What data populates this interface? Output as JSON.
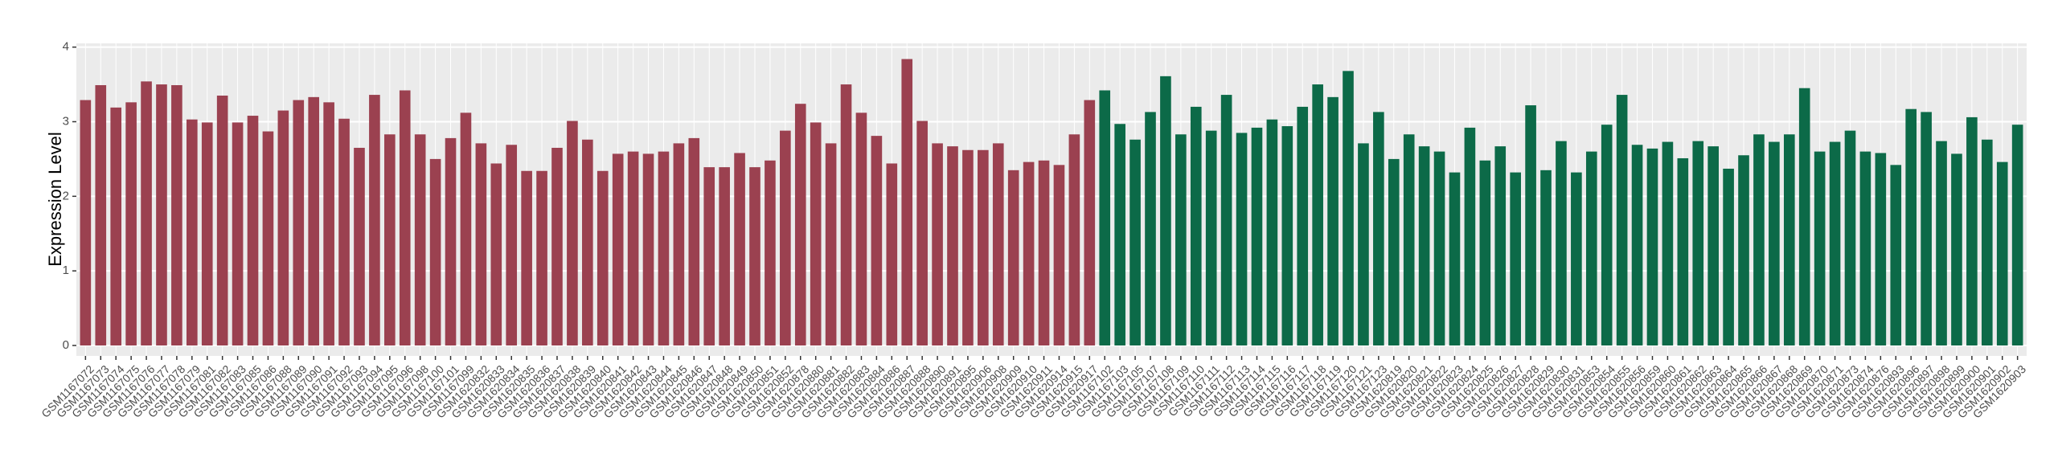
{
  "chart_data": {
    "type": "bar",
    "y_label": "Expression Level",
    "categories": [
      "GSM1167072",
      "GSM1167073",
      "GSM1167074",
      "GSM1167075",
      "GSM1167076",
      "GSM1167077",
      "GSM1167078",
      "GSM1167079",
      "GSM1167081",
      "GSM1167082",
      "GSM1167083",
      "GSM1167085",
      "GSM1167086",
      "GSM1167088",
      "GSM1167089",
      "GSM1167090",
      "GSM1167091",
      "GSM1167092",
      "GSM1167093",
      "GSM1167094",
      "GSM1167095",
      "GSM1167096",
      "GSM1167098",
      "GSM1167100",
      "GSM1167101",
      "GSM1167099",
      "GSM1620832",
      "GSM1620833",
      "GSM1620834",
      "GSM1620835",
      "GSM1620836",
      "GSM1620837",
      "GSM1620838",
      "GSM1620839",
      "GSM1620840",
      "GSM1620841",
      "GSM1620842",
      "GSM1620843",
      "GSM1620844",
      "GSM1620845",
      "GSM1620846",
      "GSM1620847",
      "GSM1620848",
      "GSM1620849",
      "GSM1620850",
      "GSM1620851",
      "GSM1620852",
      "GSM1620878",
      "GSM1620880",
      "GSM1620881",
      "GSM1620882",
      "GSM1620883",
      "GSM1620884",
      "GSM1620886",
      "GSM1620887",
      "GSM1620888",
      "GSM1620890",
      "GSM1620891",
      "GSM1620895",
      "GSM1620906",
      "GSM1620908",
      "GSM1620909",
      "GSM1620910",
      "GSM1620911",
      "GSM1620914",
      "GSM1620915",
      "GSM1620917",
      "GSM1167102",
      "GSM1167103",
      "GSM1167105",
      "GSM1167107",
      "GSM1167108",
      "GSM1167109",
      "GSM1167110",
      "GSM1167111",
      "GSM1167112",
      "GSM1167113",
      "GSM1167114",
      "GSM1167115",
      "GSM1167116",
      "GSM1167117",
      "GSM1167118",
      "GSM1167119",
      "GSM1167120",
      "GSM1167121",
      "GSM1167123",
      "GSM1620819",
      "GSM1620820",
      "GSM1620821",
      "GSM1620822",
      "GSM1620823",
      "GSM1620824",
      "GSM1620825",
      "GSM1620826",
      "GSM1620827",
      "GSM1620828",
      "GSM1620829",
      "GSM1620830",
      "GSM1620831",
      "GSM1620853",
      "GSM1620854",
      "GSM1620855",
      "GSM1620856",
      "GSM1620859",
      "GSM1620860",
      "GSM1620861",
      "GSM1620862",
      "GSM1620863",
      "GSM1620864",
      "GSM1620865",
      "GSM1620866",
      "GSM1620867",
      "GSM1620868",
      "GSM1620869",
      "GSM1620870",
      "GSM1620871",
      "GSM1620873",
      "GSM1620874",
      "GSM1620876",
      "GSM1620893",
      "GSM1620896",
      "GSM1620897",
      "GSM1620898",
      "GSM1620899",
      "GSM1620900",
      "GSM1620901",
      "GSM1620902",
      "GSM1620903"
    ],
    "values": [
      3.29,
      3.49,
      3.19,
      3.26,
      3.54,
      3.5,
      3.49,
      3.03,
      2.99,
      3.35,
      2.99,
      3.08,
      2.87,
      3.15,
      3.29,
      3.33,
      3.26,
      3.04,
      2.65,
      3.36,
      2.83,
      3.42,
      2.83,
      2.5,
      2.78,
      3.12,
      2.71,
      2.44,
      2.69,
      2.34,
      2.34,
      2.65,
      3.01,
      2.76,
      2.34,
      2.57,
      2.6,
      2.57,
      2.6,
      2.71,
      2.78,
      2.39,
      2.39,
      2.58,
      2.39,
      2.48,
      2.88,
      3.24,
      2.99,
      2.71,
      3.5,
      3.12,
      2.81,
      2.44,
      3.84,
      3.01,
      2.71,
      2.67,
      2.62,
      2.62,
      2.71,
      2.35,
      2.46,
      2.48,
      2.42,
      2.83,
      3.29,
      3.42,
      2.97,
      2.76,
      3.13,
      3.61,
      2.83,
      3.2,
      2.88,
      3.36,
      2.85,
      2.92,
      3.03,
      2.94,
      3.2,
      3.5,
      3.33,
      3.68,
      2.71,
      3.13,
      2.5,
      2.83,
      2.67,
      2.6,
      2.32,
      2.92,
      2.48,
      2.67,
      2.32,
      3.22,
      2.35,
      2.74,
      2.32,
      2.6,
      2.96,
      3.36,
      2.69,
      2.64,
      2.73,
      2.51,
      2.74,
      2.67,
      2.37,
      2.55,
      2.83,
      2.73,
      2.83,
      3.45,
      2.6,
      2.73,
      2.88,
      2.6,
      2.58,
      2.42,
      3.17,
      3.13,
      2.74,
      2.57,
      3.06,
      2.76,
      2.46,
      2.96
    ],
    "bar_colors": [
      "#9b4150",
      "#9b4150",
      "#9b4150",
      "#9b4150",
      "#9b4150",
      "#9b4150",
      "#9b4150",
      "#9b4150",
      "#9b4150",
      "#9b4150",
      "#9b4150",
      "#9b4150",
      "#9b4150",
      "#9b4150",
      "#9b4150",
      "#9b4150",
      "#9b4150",
      "#9b4150",
      "#9b4150",
      "#9b4150",
      "#9b4150",
      "#9b4150",
      "#9b4150",
      "#9b4150",
      "#9b4150",
      "#9b4150",
      "#9b4150",
      "#9b4150",
      "#9b4150",
      "#9b4150",
      "#9b4150",
      "#9b4150",
      "#9b4150",
      "#9b4150",
      "#9b4150",
      "#9b4150",
      "#9b4150",
      "#9b4150",
      "#9b4150",
      "#9b4150",
      "#9b4150",
      "#9b4150",
      "#9b4150",
      "#9b4150",
      "#9b4150",
      "#9b4150",
      "#9b4150",
      "#9b4150",
      "#9b4150",
      "#9b4150",
      "#9b4150",
      "#9b4150",
      "#9b4150",
      "#9b4150",
      "#9b4150",
      "#9b4150",
      "#9b4150",
      "#9b4150",
      "#9b4150",
      "#9b4150",
      "#9b4150",
      "#9b4150",
      "#9b4150",
      "#9b4150",
      "#9b4150",
      "#9b4150",
      "#9b4150",
      "#0c6a48",
      "#0c6a48",
      "#0c6a48",
      "#0c6a48",
      "#0c6a48",
      "#0c6a48",
      "#0c6a48",
      "#0c6a48",
      "#0c6a48",
      "#0c6a48",
      "#0c6a48",
      "#0c6a48",
      "#0c6a48",
      "#0c6a48",
      "#0c6a48",
      "#0c6a48",
      "#0c6a48",
      "#0c6a48",
      "#0c6a48",
      "#0c6a48",
      "#0c6a48",
      "#0c6a48",
      "#0c6a48",
      "#0c6a48",
      "#0c6a48",
      "#0c6a48",
      "#0c6a48",
      "#0c6a48",
      "#0c6a48",
      "#0c6a48",
      "#0c6a48",
      "#0c6a48",
      "#0c6a48",
      "#0c6a48",
      "#0c6a48",
      "#0c6a48",
      "#0c6a48",
      "#0c6a48",
      "#0c6a48",
      "#0c6a48",
      "#0c6a48",
      "#0c6a48",
      "#0c6a48",
      "#0c6a48",
      "#0c6a48",
      "#0c6a48",
      "#0c6a48",
      "#0c6a48",
      "#0c6a48",
      "#0c6a48",
      "#0c6a48",
      "#0c6a48",
      "#0c6a48",
      "#0c6a48",
      "#0c6a48",
      "#0c6a48",
      "#0c6a48",
      "#0c6a48",
      "#0c6a48",
      "#0c6a48",
      "#0c6a48"
    ],
    "ylim": [
      -0.14,
      4.05
    ],
    "yticks": [
      0,
      1,
      2,
      3,
      4
    ],
    "grid": true
  }
}
